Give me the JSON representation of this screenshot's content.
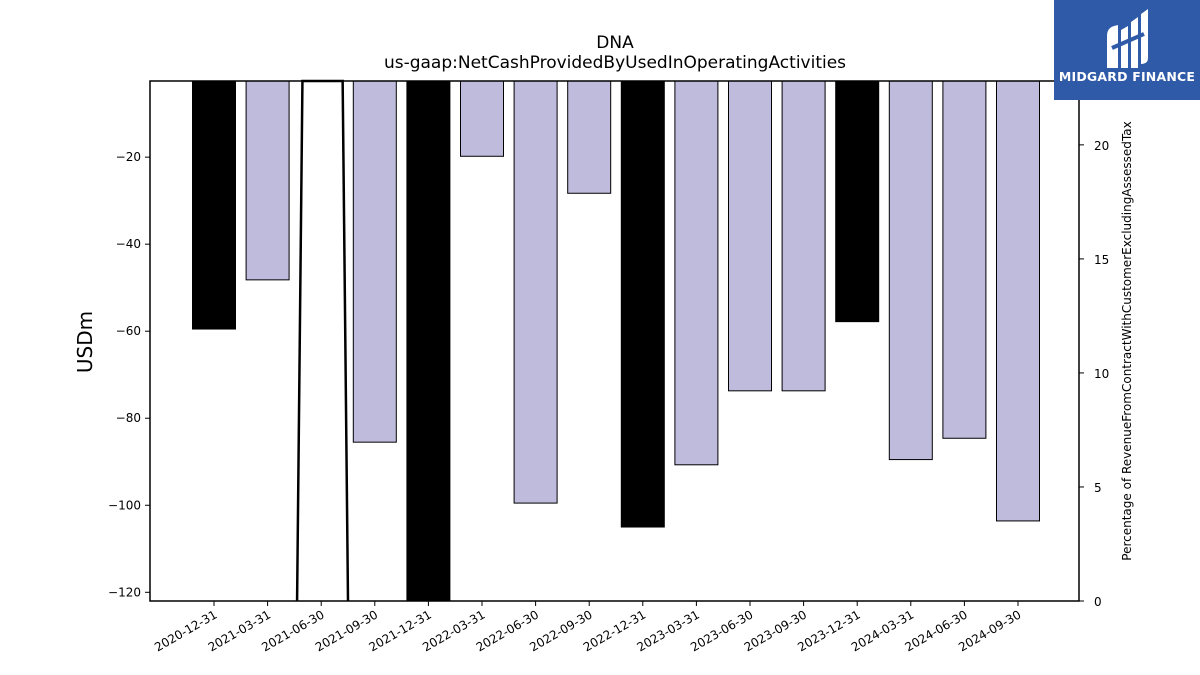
{
  "brand": {
    "name": "MIDGARD FINANCE",
    "bg_color": "#2f5aa8",
    "icon": "midgard-logo-icon"
  },
  "chart_data": {
    "type": "bar",
    "title": "DNA",
    "subtitle": "us-gaap:NetCashProvidedByUsedInOperatingActivities",
    "ylabel": "USDm",
    "y2label": "Percentage of RevenueFromContractWithCustomerExcludingAssessedTax",
    "categories": [
      "2020-12-31",
      "2021-03-31",
      "2021-06-30",
      "2021-09-30",
      "2021-12-31",
      "2022-03-31",
      "2022-06-30",
      "2022-09-30",
      "2022-12-31",
      "2023-03-31",
      "2023-06-30",
      "2023-09-30",
      "2023-12-31",
      "2024-03-31",
      "2024-06-30",
      "2024-09-30"
    ],
    "values": [
      -59.5,
      -48.2,
      null,
      -85.5,
      -122,
      -19.8,
      -99.5,
      -28.3,
      -105,
      -90.7,
      -73.7,
      -73.7,
      -57.8,
      -89.5,
      -84.6,
      -103.6
    ],
    "highlight": [
      true,
      false,
      false,
      false,
      true,
      false,
      false,
      false,
      true,
      false,
      false,
      false,
      true,
      false,
      false,
      false
    ],
    "colors": {
      "bar": "#bebbdc",
      "highlight": "#000000",
      "line": "#000000"
    },
    "ylim": [
      -122,
      -2.5
    ],
    "yticks": [
      -20,
      -40,
      -60,
      -80,
      -100,
      -120
    ],
    "y2lim": [
      0,
      22.8
    ],
    "y2ticks": [
      0,
      5,
      10,
      15,
      20
    ],
    "secondary_series": {
      "type": "line",
      "x_index": [
        1.55,
        1.65,
        2.4,
        2.5
      ],
      "values": [
        0,
        22.8,
        22.8,
        0
      ]
    },
    "grid": false
  }
}
